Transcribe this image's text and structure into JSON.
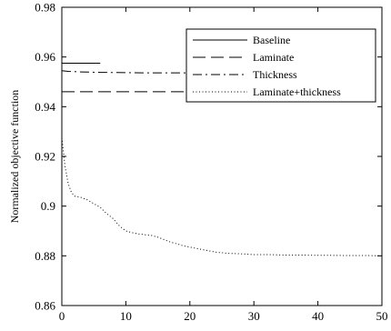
{
  "chart_data": {
    "type": "line",
    "title": "",
    "xlabel": "",
    "ylabel": "Normalized objective function",
    "xlim": [
      0,
      50
    ],
    "ylim": [
      0.86,
      0.98
    ],
    "x_ticks": [
      0,
      10,
      20,
      30,
      40,
      50
    ],
    "y_ticks": [
      0.86,
      0.88,
      0.9,
      0.92,
      0.94,
      0.96,
      0.98
    ],
    "y_tick_labels": [
      "0.86",
      "0.88",
      "0.9",
      "0.92",
      "0.94",
      "0.96",
      "0.98"
    ],
    "grid": false,
    "legend_position": "top-right",
    "series": [
      {
        "name": "Baseline",
        "style": "solid",
        "color": "#000000",
        "x": [
          0,
          6
        ],
        "y": [
          0.9575,
          0.9575
        ]
      },
      {
        "name": "Laminate",
        "style": "dashed",
        "color": "#000000",
        "x": [
          0,
          22
        ],
        "y": [
          0.946,
          0.946
        ]
      },
      {
        "name": "Thickness",
        "style": "dashdot",
        "color": "#000000",
        "x": [
          0,
          1,
          3,
          6,
          10,
          14,
          18,
          22
        ],
        "y": [
          0.9545,
          0.9542,
          0.954,
          0.9538,
          0.9537,
          0.9536,
          0.9536,
          0.9536
        ]
      },
      {
        "name": "Laminate+thickness",
        "style": "dotted",
        "color": "#000000",
        "x": [
          0,
          0.5,
          1,
          1.5,
          2,
          3,
          4,
          5,
          6,
          7,
          8,
          9,
          10,
          11,
          12,
          13,
          14,
          15,
          16,
          17,
          18,
          19,
          20,
          22,
          24,
          26,
          28,
          30,
          32,
          35,
          38,
          40,
          42,
          45,
          48,
          50
        ],
        "y": [
          0.9275,
          0.916,
          0.909,
          0.9055,
          0.904,
          0.9035,
          0.9025,
          0.901,
          0.8995,
          0.897,
          0.895,
          0.892,
          0.89,
          0.8893,
          0.8888,
          0.8885,
          0.8882,
          0.8875,
          0.8865,
          0.8855,
          0.8848,
          0.884,
          0.8835,
          0.8825,
          0.8815,
          0.881,
          0.8808,
          0.8805,
          0.8805,
          0.8803,
          0.8803,
          0.8802,
          0.8802,
          0.8801,
          0.8801,
          0.88
        ]
      }
    ]
  }
}
